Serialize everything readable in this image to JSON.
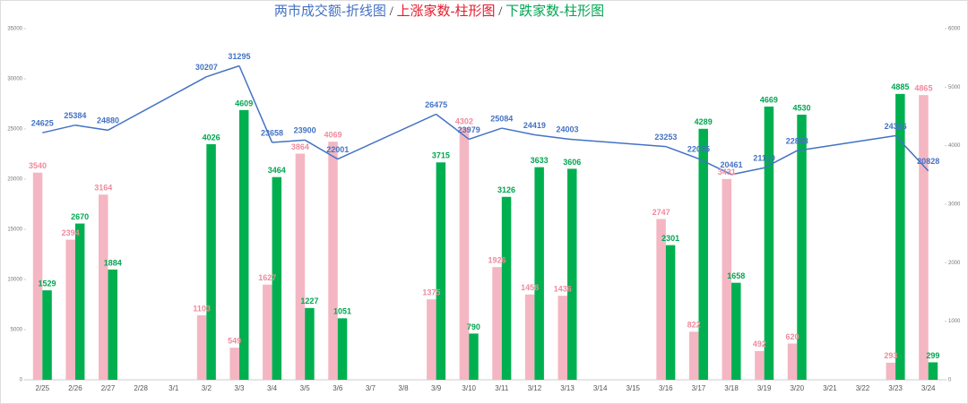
{
  "chart_data": {
    "type": "bar_line",
    "title_parts": [
      {
        "text": "两市成交额-折线图",
        "color": "#4472c4"
      },
      {
        "text": " / ",
        "color": "#222222"
      },
      {
        "text": "上涨家数-柱形图",
        "color": "#e8182a"
      },
      {
        "text": " / ",
        "color": "#222222"
      },
      {
        "text": "下跌家数-柱形图",
        "color": "#00a651"
      }
    ],
    "categories": [
      "2/25",
      "2/26",
      "2/27",
      "2/28",
      "3/1",
      "3/2",
      "3/3",
      "3/4",
      "3/5",
      "3/6",
      "3/7",
      "3/8",
      "3/9",
      "3/10",
      "3/11",
      "3/12",
      "3/13",
      "3/14",
      "3/15",
      "3/16",
      "3/17",
      "3/18",
      "3/19",
      "3/20",
      "3/21",
      "3/22",
      "3/23",
      "3/24"
    ],
    "series": [
      {
        "type": "line",
        "axis": "y",
        "color": "#4472c4",
        "label_color": "#4472c4",
        "connect_gaps": true,
        "values": [
          24625,
          25384,
          24880,
          null,
          null,
          30207,
          31295,
          23658,
          23900,
          22001,
          null,
          null,
          26475,
          23979,
          25084,
          24419,
          24003,
          null,
          null,
          23253,
          22035,
          20461,
          21130,
          22838,
          null,
          null,
          24326,
          20828
        ]
      },
      {
        "type": "bar",
        "axis": "y2",
        "color": "#f4b6c2",
        "label_color": "#f08a9c",
        "values": [
          3540,
          2394,
          3164,
          null,
          null,
          1103,
          549,
          1627,
          3864,
          4069,
          null,
          null,
          1375,
          4302,
          1926,
          1458,
          1436,
          null,
          null,
          2747,
          822,
          3431,
          492,
          620,
          null,
          null,
          293,
          4865
        ]
      },
      {
        "type": "bar",
        "axis": "y2",
        "color": "#00b050",
        "label_color": "#00a651",
        "values": [
          1529,
          2670,
          1884,
          null,
          null,
          4026,
          4609,
          3464,
          1227,
          1051,
          null,
          null,
          3715,
          790,
          3126,
          3633,
          3606,
          null,
          null,
          2301,
          4289,
          1658,
          4669,
          4530,
          null,
          null,
          4885,
          299
        ]
      }
    ],
    "ylim": [
      0,
      35000
    ],
    "yticks": [
      0,
      5000,
      10000,
      15000,
      20000,
      25000,
      30000,
      35000
    ],
    "y2lim": [
      0,
      6000
    ],
    "y2ticks": [
      0,
      1000,
      2000,
      3000,
      4000,
      5000,
      6000
    ]
  }
}
